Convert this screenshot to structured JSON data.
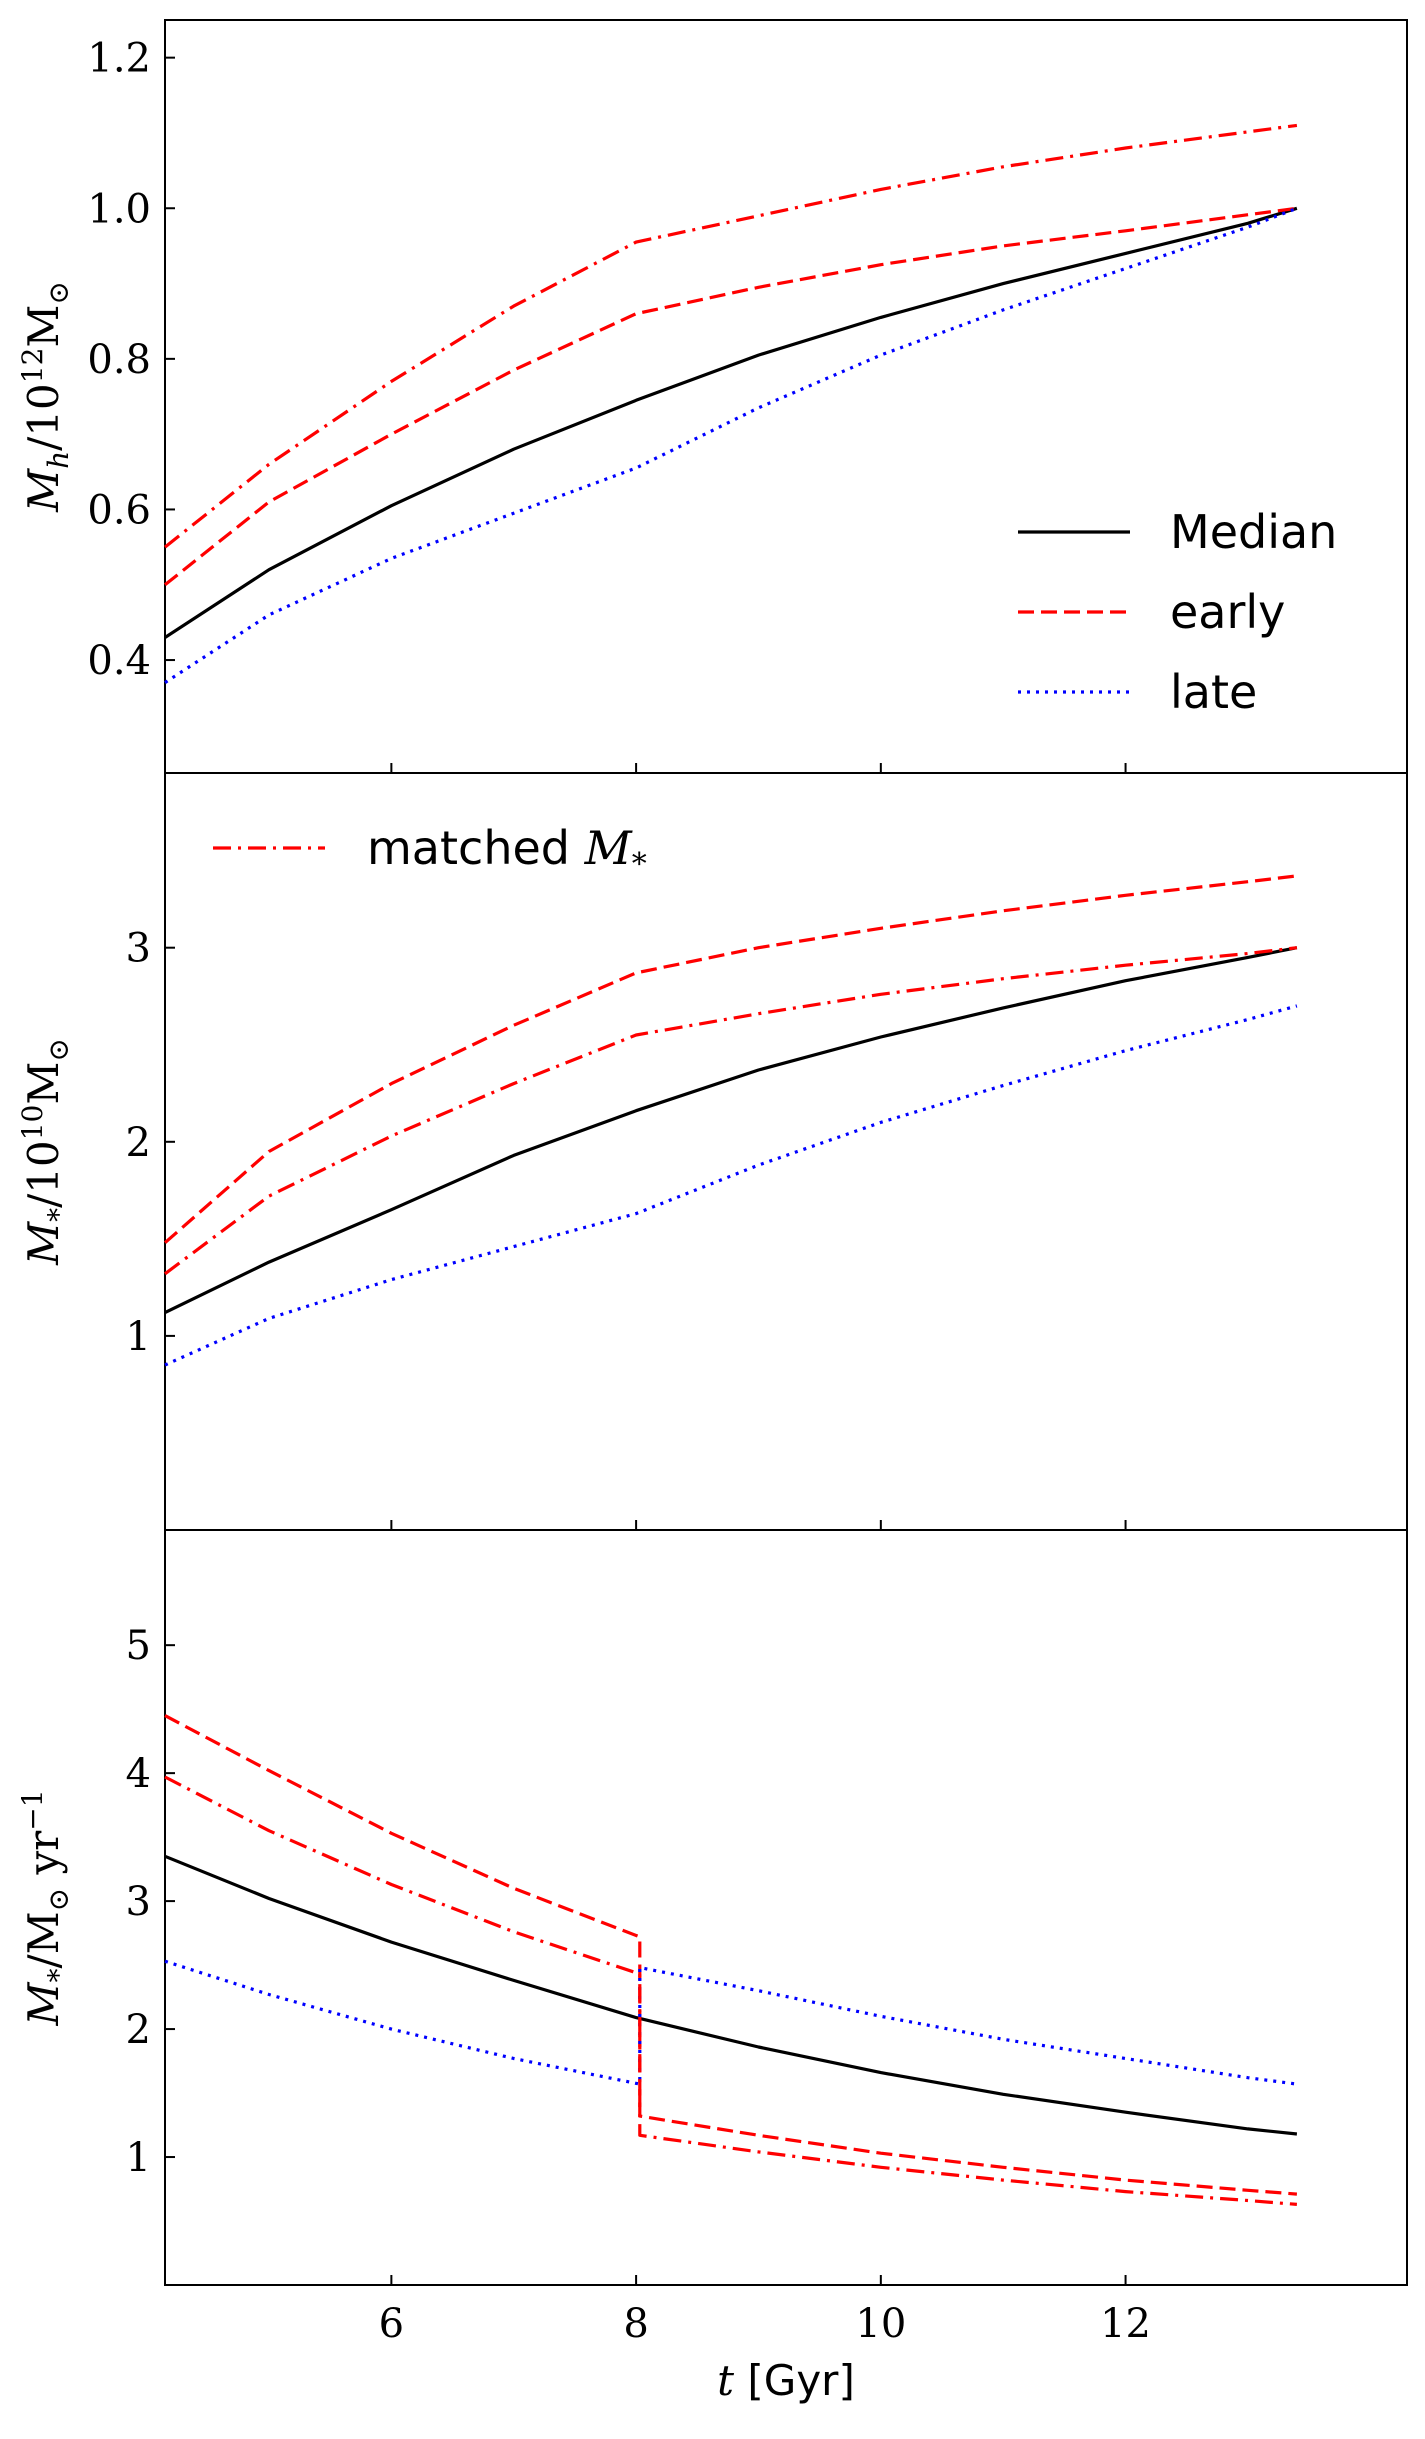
{
  "chart_data": [
    {
      "type": "line",
      "panel": "top",
      "ylabel": {
        "prefix": "M",
        "sub": "h",
        "mid": "/10",
        "sup": "12",
        "suffix": "M",
        "sub2": "⊙"
      },
      "xlim": [
        4.15,
        14.3
      ],
      "ylim": [
        0.25,
        1.25
      ],
      "yticks": [
        0.4,
        0.6,
        0.8,
        1.0,
        1.2
      ],
      "ytick_labels": [
        "0.4",
        "0.6",
        "0.8",
        "1.0",
        "1.2"
      ],
      "legend": {
        "placement": "lower-right",
        "entries": [
          "Median",
          "early",
          "late"
        ]
      },
      "series": [
        {
          "name": "Median",
          "style": "solid",
          "color": "#000000",
          "x": [
            4.15,
            5,
            6,
            7,
            8,
            9,
            10,
            11,
            12,
            13,
            13.4
          ],
          "y": [
            0.43,
            0.52,
            0.605,
            0.68,
            0.745,
            0.805,
            0.855,
            0.9,
            0.94,
            0.98,
            1.0
          ]
        },
        {
          "name": "early",
          "style": "dashed",
          "color": "#ff0000",
          "x": [
            4.15,
            5,
            6,
            7,
            8,
            9,
            10,
            11,
            12,
            13.4
          ],
          "y": [
            0.5,
            0.61,
            0.7,
            0.785,
            0.86,
            0.895,
            0.925,
            0.95,
            0.97,
            1.0
          ]
        },
        {
          "name": "late",
          "style": "dotted",
          "color": "#0000ff",
          "x": [
            4.15,
            5,
            6,
            7,
            8,
            9,
            10,
            11,
            12,
            13,
            13.4
          ],
          "y": [
            0.37,
            0.46,
            0.535,
            0.595,
            0.655,
            0.735,
            0.805,
            0.865,
            0.92,
            0.975,
            1.0
          ]
        },
        {
          "name": "matched M*",
          "style": "dashdot",
          "color": "#ff0000",
          "x": [
            4.15,
            5,
            6,
            7,
            8,
            9,
            10,
            11,
            12,
            13.4
          ],
          "y": [
            0.55,
            0.66,
            0.77,
            0.87,
            0.955,
            0.99,
            1.025,
            1.055,
            1.08,
            1.11
          ]
        }
      ]
    },
    {
      "type": "line",
      "panel": "middle",
      "ylabel": {
        "prefix": "M",
        "sub": "*",
        "mid": "/10",
        "sup": "10",
        "suffix": "M",
        "sub2": "⊙"
      },
      "xlim": [
        4.15,
        14.3
      ],
      "ylim": [
        0,
        3.9
      ],
      "yticks": [
        1,
        2,
        3
      ],
      "ytick_labels": [
        "1",
        "2",
        "3"
      ],
      "legend": {
        "placement": "upper-left",
        "entries": [
          "matched"
        ]
      },
      "series": [
        {
          "name": "Median",
          "style": "solid",
          "color": "#000000",
          "x": [
            4.15,
            5,
            6,
            7,
            8,
            9,
            10,
            11,
            12,
            13,
            13.4
          ],
          "y": [
            1.12,
            1.38,
            1.65,
            1.93,
            2.16,
            2.37,
            2.54,
            2.69,
            2.83,
            2.95,
            3.0
          ]
        },
        {
          "name": "early",
          "style": "dashed",
          "color": "#ff0000",
          "x": [
            4.15,
            5,
            6,
            7,
            8,
            9,
            10,
            11,
            12,
            13,
            13.4
          ],
          "y": [
            1.48,
            1.95,
            2.3,
            2.6,
            2.87,
            3.0,
            3.1,
            3.19,
            3.27,
            3.34,
            3.37
          ]
        },
        {
          "name": "late",
          "style": "dotted",
          "color": "#0000ff",
          "x": [
            4.15,
            5,
            6,
            7,
            8,
            9,
            10,
            11,
            12,
            13,
            13.4
          ],
          "y": [
            0.85,
            1.09,
            1.29,
            1.46,
            1.63,
            1.88,
            2.1,
            2.29,
            2.47,
            2.63,
            2.7
          ]
        },
        {
          "name": "matched M*",
          "style": "dashdot",
          "color": "#ff0000",
          "x": [
            4.15,
            5,
            6,
            7,
            8,
            9,
            10,
            11,
            12,
            13,
            13.4
          ],
          "y": [
            1.32,
            1.72,
            2.03,
            2.3,
            2.55,
            2.66,
            2.76,
            2.84,
            2.91,
            2.97,
            3.0
          ]
        }
      ]
    },
    {
      "type": "line",
      "panel": "bottom",
      "ylabel": {
        "prefix": "M",
        "sub": "*",
        "mid": "/M",
        "sub2": "⊙",
        "suffix": " yr",
        "sup": "−1",
        "dot": "·"
      },
      "xlabel": {
        "var": "t",
        "unit": " [Gyr]"
      },
      "xlim": [
        4.15,
        14.3
      ],
      "xticks": [
        6,
        8,
        10,
        12
      ],
      "xtick_labels": [
        "6",
        "8",
        "10",
        "12"
      ],
      "ylim": [
        0,
        5.9
      ],
      "yticks": [
        1,
        2,
        3,
        4,
        5
      ],
      "ytick_labels": [
        "1",
        "2",
        "3",
        "4",
        "5"
      ],
      "series": [
        {
          "name": "Median",
          "style": "solid",
          "color": "#000000",
          "x": [
            4.15,
            5,
            6,
            7,
            8,
            9,
            10,
            11,
            12,
            13,
            13.4
          ],
          "y": [
            3.35,
            3.02,
            2.68,
            2.38,
            2.09,
            1.86,
            1.66,
            1.49,
            1.35,
            1.22,
            1.18
          ]
        },
        {
          "name": "early",
          "style": "dashed",
          "color": "#ff0000",
          "x": [
            4.15,
            5,
            6,
            7,
            8.03,
            8.03,
            9,
            10,
            11,
            12,
            13,
            13.4
          ],
          "y": [
            4.45,
            4.02,
            3.53,
            3.1,
            2.72,
            1.32,
            1.17,
            1.03,
            0.92,
            0.82,
            0.74,
            0.71
          ]
        },
        {
          "name": "late",
          "style": "dotted",
          "color": "#0000ff",
          "x": [
            4.15,
            5,
            6,
            7,
            8.03,
            8.03,
            9,
            10,
            11,
            12,
            13,
            13.4
          ],
          "y": [
            2.53,
            2.27,
            2.0,
            1.77,
            1.57,
            2.48,
            2.3,
            2.1,
            1.92,
            1.77,
            1.62,
            1.57
          ]
        },
        {
          "name": "matched M*",
          "style": "dashdot",
          "color": "#ff0000",
          "x": [
            4.15,
            5,
            6,
            7,
            8.03,
            8.03,
            9,
            10,
            11,
            12,
            13,
            13.4
          ],
          "y": [
            3.97,
            3.55,
            3.13,
            2.76,
            2.43,
            1.17,
            1.04,
            0.92,
            0.82,
            0.73,
            0.66,
            0.63
          ]
        }
      ]
    }
  ]
}
